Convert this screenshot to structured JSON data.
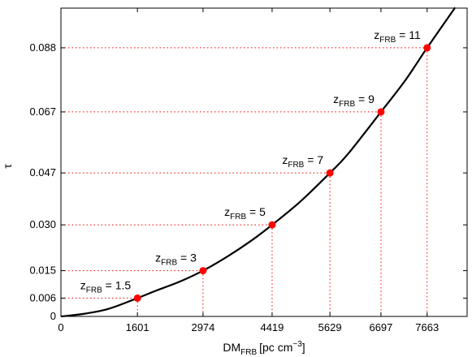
{
  "chart_data": {
    "type": "line",
    "title": "",
    "xlabel": {
      "main": "DM",
      "sub": "FRB",
      "unit": "[pc cm",
      "exp": "−3",
      "close": "]"
    },
    "ylabel": "τ",
    "xlim": [
      0,
      8500
    ],
    "ylim": [
      0,
      0.101
    ],
    "grid": false,
    "x_ticks": [
      0,
      1601,
      2974,
      4419,
      5629,
      6697,
      7663
    ],
    "x_tick_labels": [
      "0",
      "1601",
      "2974",
      "4419",
      "5629",
      "6697",
      "7663"
    ],
    "y_ticks": [
      0,
      0.006,
      0.015,
      0.03,
      0.047,
      0.067,
      0.088
    ],
    "y_tick_labels": [
      "0",
      "0.006",
      "0.015",
      "0.030",
      "0.047",
      "0.067",
      "0.088"
    ],
    "series": [
      {
        "x": [
          0,
          500,
          1000,
          1601,
          2000,
          2500,
          2974,
          3500,
          4000,
          4419,
          5000,
          5629,
          6000,
          6697,
          7200,
          7663,
          8250
        ],
        "y": [
          0,
          0.0009,
          0.0025,
          0.006,
          0.0085,
          0.0115,
          0.015,
          0.0198,
          0.025,
          0.03,
          0.0375,
          0.047,
          0.0531,
          0.067,
          0.0772,
          0.088,
          0.1012
        ],
        "color": "#000000"
      }
    ],
    "points": [
      {
        "x": 1601,
        "y": 0.006,
        "label": "1.5"
      },
      {
        "x": 2974,
        "y": 0.015,
        "label": "3"
      },
      {
        "x": 4419,
        "y": 0.03,
        "label": "5"
      },
      {
        "x": 5629,
        "y": 0.047,
        "label": "7"
      },
      {
        "x": 6697,
        "y": 0.067,
        "label": "9"
      },
      {
        "x": 7663,
        "y": 0.088,
        "label": "11"
      }
    ],
    "annotation_prefix": "z",
    "annotation_sub": "FRB",
    "annotation_eq": " = ",
    "point_color": "#ff0000",
    "guide_color": "#ff0000"
  }
}
